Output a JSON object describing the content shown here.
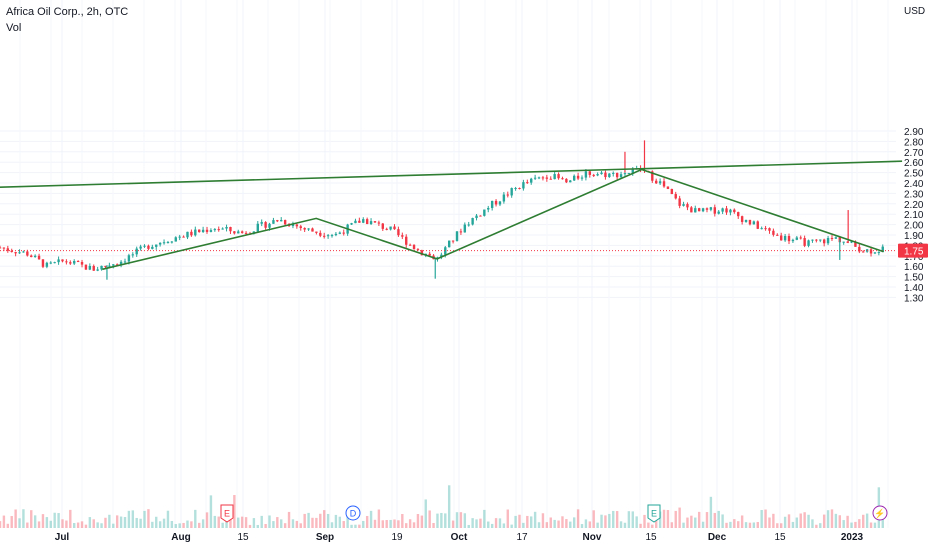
{
  "header": {
    "title": "Africa Oil Corp., 2h, OTC",
    "volume_label": "Vol"
  },
  "axis": {
    "currency": "USD",
    "price_ticks": [
      "2.90",
      "2.80",
      "2.70",
      "2.60",
      "2.50",
      "2.40",
      "2.30",
      "2.20",
      "2.10",
      "2.00",
      "1.90",
      "1.80",
      "1.70",
      "1.60",
      "1.50",
      "1.40",
      "1.30"
    ],
    "time_ticks": [
      {
        "label": "Jul",
        "bold": true
      },
      {
        "label": "Aug",
        "bold": true
      },
      {
        "label": "15",
        "bold": false
      },
      {
        "label": "Sep",
        "bold": true
      },
      {
        "label": "19",
        "bold": false
      },
      {
        "label": "Oct",
        "bold": true
      },
      {
        "label": "17",
        "bold": false
      },
      {
        "label": "Nov",
        "bold": true
      },
      {
        "label": "15",
        "bold": false
      },
      {
        "label": "Dec",
        "bold": true
      },
      {
        "label": "15",
        "bold": false
      },
      {
        "label": "2023",
        "bold": true
      }
    ]
  },
  "last_price": {
    "label": "1.75",
    "value": 1.75,
    "color": "#f23645"
  },
  "colors": {
    "up": "#26a69a",
    "down": "#f23645",
    "trendline": "#2e7d32",
    "grid": "#f0f3fa",
    "text": "#131722"
  },
  "chart_data": {
    "type": "candlestick",
    "title": "Africa Oil Corp., 2h, OTC",
    "ylabel": "USD",
    "ylim": [
      1.25,
      3.0
    ],
    "grid": true,
    "events": [
      {
        "symbol": "E",
        "name": "earnings",
        "near": "Aug",
        "color": "#f23645"
      },
      {
        "symbol": "D",
        "name": "dividend",
        "near": "Sep",
        "color": "#2962ff"
      },
      {
        "symbol": "E",
        "name": "earnings",
        "near": "Nov 15",
        "color": "#26a69a"
      },
      {
        "symbol": "⚡",
        "name": "split",
        "near": "2023",
        "color": "#9c27b0"
      }
    ],
    "price_path": [
      {
        "t": 0.0,
        "price": 1.78
      },
      {
        "t": 3.0,
        "price": 1.72
      },
      {
        "t": 5.0,
        "price": 1.6
      },
      {
        "t": 7.0,
        "price": 1.65
      },
      {
        "t": 10.0,
        "price": 1.57
      },
      {
        "t": 13.0,
        "price": 1.65
      },
      {
        "t": 16.0,
        "price": 1.8
      },
      {
        "t": 19.0,
        "price": 1.88
      },
      {
        "t": 23.0,
        "price": 1.97
      },
      {
        "t": 26.0,
        "price": 1.92
      },
      {
        "t": 30.0,
        "price": 2.05
      },
      {
        "t": 33.0,
        "price": 1.95
      },
      {
        "t": 36.0,
        "price": 1.9
      },
      {
        "t": 39.0,
        "price": 2.05
      },
      {
        "t": 42.0,
        "price": 1.95
      },
      {
        "t": 45.0,
        "price": 1.75
      },
      {
        "t": 47.0,
        "price": 1.67
      },
      {
        "t": 50.0,
        "price": 2.0
      },
      {
        "t": 53.0,
        "price": 2.2
      },
      {
        "t": 56.0,
        "price": 2.38
      },
      {
        "t": 59.0,
        "price": 2.48
      },
      {
        "t": 61.0,
        "price": 2.4
      },
      {
        "t": 63.0,
        "price": 2.5
      },
      {
        "t": 66.0,
        "price": 2.48
      },
      {
        "t": 69.0,
        "price": 2.53
      },
      {
        "t": 71.0,
        "price": 2.4
      },
      {
        "t": 73.0,
        "price": 2.2
      },
      {
        "t": 75.0,
        "price": 2.12
      },
      {
        "t": 78.0,
        "price": 2.15
      },
      {
        "t": 81.0,
        "price": 2.0
      },
      {
        "t": 84.0,
        "price": 1.88
      },
      {
        "t": 87.0,
        "price": 1.82
      },
      {
        "t": 90.0,
        "price": 1.87
      },
      {
        "t": 93.0,
        "price": 1.75
      },
      {
        "t": 95.0,
        "price": 1.76
      }
    ],
    "wick_spikes": [
      {
        "t": 11.5,
        "low": 1.47
      },
      {
        "t": 46.8,
        "low": 1.48
      },
      {
        "t": 67.2,
        "high": 2.7
      },
      {
        "t": 69.3,
        "high": 2.81
      },
      {
        "t": 91.2,
        "high": 2.14
      },
      {
        "t": 90.3,
        "low": 1.66
      }
    ],
    "trendlines": [
      {
        "name": "resistance",
        "points": [
          {
            "t": 0.0,
            "price": 2.36
          },
          {
            "t": 97.0,
            "price": 2.61
          }
        ]
      },
      {
        "name": "zigzag",
        "points": [
          {
            "t": 11.0,
            "price": 1.57
          },
          {
            "t": 34.0,
            "price": 2.06
          },
          {
            "t": 47.0,
            "price": 1.67
          },
          {
            "t": 69.0,
            "price": 2.53
          },
          {
            "t": 95.0,
            "price": 1.74
          }
        ]
      }
    ]
  }
}
